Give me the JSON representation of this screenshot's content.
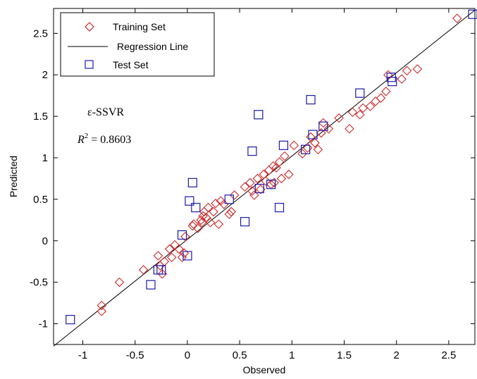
{
  "chart_data": {
    "type": "scatter",
    "xlabel": "Observed",
    "ylabel": "Predicted",
    "xlim": [
      -1.28,
      2.75
    ],
    "ylim": [
      -1.25,
      2.8
    ],
    "xticks": [
      -1,
      -0.5,
      0,
      0.5,
      1,
      1.5,
      2,
      2.5
    ],
    "yticks": [
      -1,
      -0.5,
      0,
      0.5,
      1,
      1.5,
      2,
      2.5
    ],
    "grid": false,
    "legend_position": "top-left",
    "annotation": {
      "model": "ε-SSVR",
      "r2_label": "R",
      "r2_exp": "2",
      "r2_value": " = 0.8603"
    },
    "series": [
      {
        "name": "Training Set",
        "marker": "diamond",
        "color": "#cc2a2a",
        "x": [
          -0.82,
          -0.82,
          -0.65,
          -0.42,
          -0.28,
          -0.26,
          -0.24,
          -0.22,
          -0.17,
          -0.15,
          -0.12,
          -0.08,
          -0.05,
          -0.03,
          -0.02,
          0.05,
          0.06,
          0.1,
          0.13,
          0.14,
          0.15,
          0.16,
          0.18,
          0.2,
          0.22,
          0.25,
          0.27,
          0.3,
          0.32,
          0.35,
          0.4,
          0.42,
          0.45,
          0.55,
          0.6,
          0.62,
          0.64,
          0.67,
          0.7,
          0.73,
          0.75,
          0.78,
          0.8,
          0.82,
          0.83,
          0.85,
          0.88,
          0.9,
          0.93,
          0.97,
          1.02,
          1.1,
          1.15,
          1.18,
          1.22,
          1.25,
          1.28,
          1.3,
          1.35,
          1.45,
          1.55,
          1.58,
          1.65,
          1.68,
          1.75,
          1.8,
          1.85,
          1.9,
          1.92,
          2.05,
          2.1,
          2.2,
          2.58
        ],
        "y": [
          -0.85,
          -0.78,
          -0.5,
          -0.35,
          -0.18,
          -0.3,
          -0.4,
          -0.25,
          -0.1,
          -0.2,
          -0.05,
          -0.1,
          -0.2,
          -0.15,
          0.05,
          0.18,
          0.2,
          0.15,
          0.25,
          0.22,
          0.3,
          0.35,
          0.28,
          0.4,
          0.22,
          0.35,
          0.45,
          0.2,
          0.48,
          0.44,
          0.32,
          0.35,
          0.55,
          0.65,
          0.7,
          0.6,
          0.55,
          0.75,
          0.62,
          0.8,
          0.72,
          0.85,
          0.68,
          0.9,
          0.7,
          0.88,
          0.95,
          0.75,
          1.02,
          0.8,
          1.15,
          1.05,
          1.12,
          1.25,
          1.18,
          1.1,
          1.3,
          1.42,
          1.35,
          1.48,
          1.35,
          1.55,
          1.52,
          1.6,
          1.62,
          1.68,
          1.72,
          1.8,
          2.0,
          1.95,
          2.05,
          2.07,
          2.68
        ]
      },
      {
        "name": "Test Set",
        "marker": "square",
        "color": "#1a1aa8",
        "x": [
          -1.12,
          -0.35,
          -0.28,
          -0.25,
          -0.05,
          0.0,
          0.02,
          0.05,
          0.08,
          0.4,
          0.55,
          0.62,
          0.68,
          0.69,
          0.8,
          0.88,
          0.92,
          1.13,
          1.18,
          1.2,
          1.3,
          1.65,
          1.95,
          1.96,
          2.73
        ],
        "y": [
          -0.95,
          -0.53,
          -0.35,
          -0.35,
          0.07,
          -0.18,
          0.48,
          0.7,
          0.4,
          0.5,
          0.23,
          1.08,
          1.52,
          0.63,
          0.68,
          0.4,
          1.15,
          1.1,
          1.7,
          1.28,
          1.38,
          1.78,
          1.97,
          1.92,
          2.73
        ]
      },
      {
        "name": "Regression Line",
        "marker": "line",
        "color": "#000000",
        "x": [
          -1.28,
          2.75
        ],
        "y": [
          -1.27,
          2.78
        ]
      }
    ]
  }
}
